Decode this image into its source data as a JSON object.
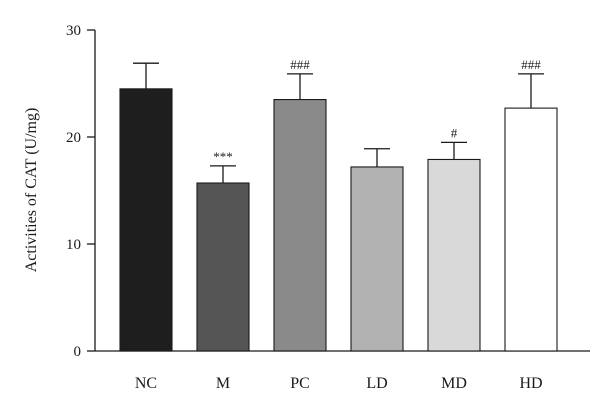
{
  "chart_data": {
    "type": "bar",
    "title": "",
    "xlabel": "",
    "ylabel": "Activities of CAT (U/mg)",
    "ylim": [
      0,
      30
    ],
    "yticks": [
      0,
      10,
      20,
      30
    ],
    "grid": false,
    "categories": [
      "NC",
      "M",
      "PC",
      "LD",
      "MD",
      "HD"
    ],
    "values": [
      24.5,
      15.7,
      23.5,
      17.2,
      17.9,
      22.7
    ],
    "errors": [
      2.4,
      1.6,
      2.4,
      1.7,
      1.6,
      3.2
    ],
    "annotations": [
      "",
      "***",
      "###",
      "",
      "#",
      "###"
    ],
    "colors": [
      "#1e1e1e",
      "#555555",
      "#8a8a8a",
      "#b1b1b1",
      "#d9d9d9",
      "#ffffff"
    ]
  }
}
